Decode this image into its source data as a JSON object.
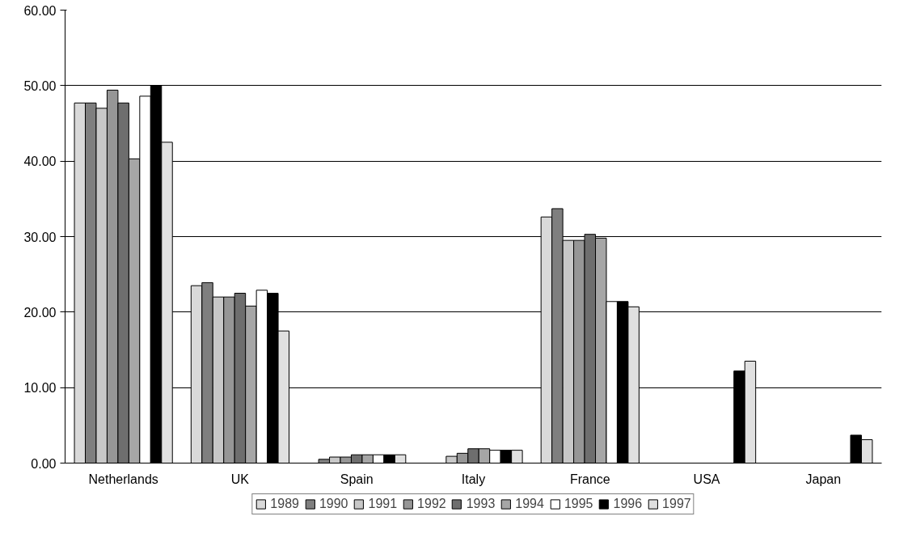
{
  "chart_data": {
    "type": "bar",
    "categories": [
      "Netherlands",
      "UK",
      "Spain",
      "Italy",
      "France",
      "USA",
      "Japan"
    ],
    "series": [
      {
        "name": "1989",
        "color": "#d9d9d9",
        "values": [
          47.7,
          23.5,
          null,
          null,
          32.6,
          null,
          null
        ]
      },
      {
        "name": "1990",
        "color": "#7f7f7f",
        "values": [
          47.7,
          23.9,
          0.5,
          null,
          33.7,
          null,
          null
        ]
      },
      {
        "name": "1991",
        "color": "#c8c8c8",
        "values": [
          47.0,
          22.0,
          0.8,
          0.9,
          29.5,
          null,
          null
        ]
      },
      {
        "name": "1992",
        "color": "#969696",
        "values": [
          49.4,
          22.0,
          0.8,
          1.3,
          29.5,
          null,
          null
        ]
      },
      {
        "name": "1993",
        "color": "#6e6e6e",
        "values": [
          47.7,
          22.5,
          1.1,
          1.9,
          30.3,
          null,
          null
        ]
      },
      {
        "name": "1994",
        "color": "#a6a6a6",
        "values": [
          40.3,
          20.8,
          1.1,
          1.9,
          29.8,
          null,
          null
        ]
      },
      {
        "name": "1995",
        "color": "#ffffff",
        "values": [
          48.6,
          22.9,
          1.1,
          1.7,
          21.4,
          null,
          null
        ]
      },
      {
        "name": "1996",
        "color": "#000000",
        "values": [
          50.0,
          22.5,
          1.1,
          1.7,
          21.4,
          12.2,
          3.7
        ]
      },
      {
        "name": "1997",
        "color": "#e0e0e0",
        "values": [
          42.5,
          17.5,
          1.1,
          1.7,
          20.7,
          13.5,
          3.1
        ]
      }
    ],
    "ylim": [
      0,
      60
    ],
    "yticks": [
      {
        "value": 0,
        "label": "0.00"
      },
      {
        "value": 10,
        "label": "10.00"
      },
      {
        "value": 20,
        "label": "20.00"
      },
      {
        "value": 30,
        "label": "30.00"
      },
      {
        "value": 40,
        "label": "40.00"
      },
      {
        "value": 50,
        "label": "50.00"
      },
      {
        "value": 60,
        "label": "60.00"
      }
    ],
    "grid": "y",
    "legend": "bottom"
  }
}
